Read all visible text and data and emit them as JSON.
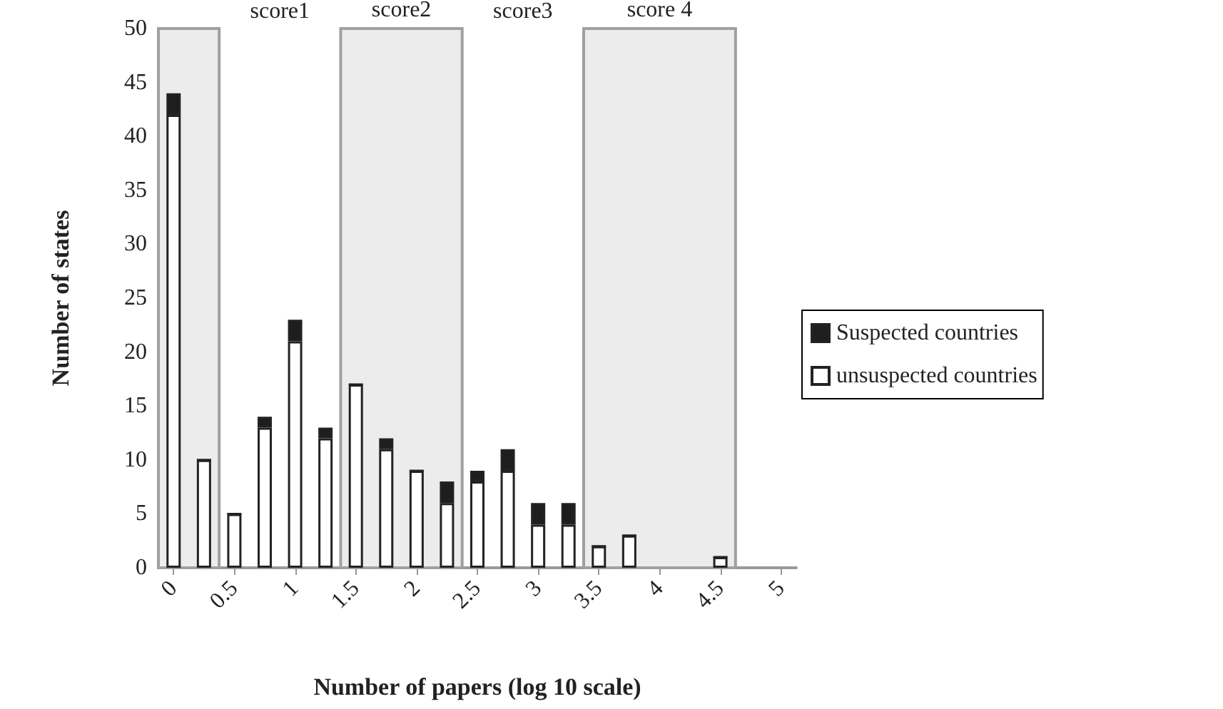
{
  "chart_data": {
    "type": "bar",
    "stacked": true,
    "xlabel": "Number of papers (log 10 scale)",
    "ylabel": "Number of states",
    "x": [
      0,
      0.25,
      0.5,
      0.75,
      1,
      1.25,
      1.5,
      1.75,
      2,
      2.25,
      2.5,
      2.75,
      3,
      3.25,
      3.5,
      3.75,
      4.5
    ],
    "series": [
      {
        "name": "unsuspected countries",
        "color": "#ffffff",
        "values": [
          42,
          10,
          5,
          13,
          21,
          12,
          17,
          11,
          9,
          6,
          8,
          9,
          4,
          4,
          2,
          3,
          1
        ]
      },
      {
        "name": "Suspected countries",
        "color": "#1e1e1e",
        "values": [
          2,
          0,
          0,
          1,
          2,
          1,
          0,
          1,
          0,
          2,
          1,
          2,
          2,
          2,
          0,
          0,
          0
        ]
      }
    ],
    "xlim": [
      -0.125,
      5.125
    ],
    "xticks": [
      0,
      0.5,
      1,
      1.5,
      2,
      2.5,
      3,
      3.5,
      4,
      4.5,
      5
    ],
    "ylim": [
      0,
      50
    ],
    "yticks": [
      0,
      5,
      10,
      15,
      20,
      25,
      30,
      35,
      40,
      45,
      50
    ],
    "bands": [
      {
        "axis": "x",
        "from": -0.125,
        "to": 0.375,
        "label": null,
        "color": "#ececec"
      },
      {
        "axis": "x",
        "from": 1.375,
        "to": 2.375,
        "label": "score2",
        "color": "#ececec"
      },
      {
        "axis": "x",
        "from": 3.375,
        "to": 4.625,
        "label": "score 4",
        "color": "#ececec"
      }
    ],
    "annotations": [
      "score1",
      "score3"
    ],
    "grid": false,
    "legend": "right"
  }
}
